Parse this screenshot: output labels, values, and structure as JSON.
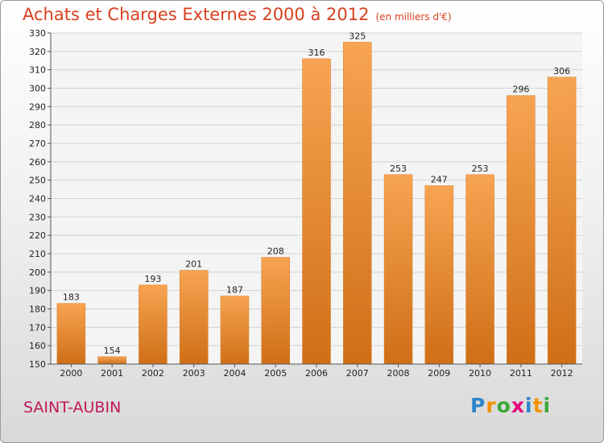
{
  "header": {
    "title": "Achats et Charges Externes 2000 à 2012",
    "subtitle": "(en milliers d'€)"
  },
  "footer": {
    "place": "SAINT-AUBIN",
    "logo_letters": [
      "P",
      "r",
      "o",
      "x",
      "i",
      "t",
      "i"
    ],
    "logo_colors": [
      "#2e86c9",
      "#f39200",
      "#3aa935",
      "#e6007e",
      "#2e86c9",
      "#f39200",
      "#3aa935"
    ]
  },
  "chart_data": {
    "type": "bar",
    "title": "Achats et Charges Externes 2000 à 2012",
    "subtitle": "(en milliers d'€)",
    "xlabel": "",
    "ylabel": "",
    "categories": [
      "2000",
      "2001",
      "2002",
      "2003",
      "2004",
      "2005",
      "2006",
      "2007",
      "2008",
      "2009",
      "2010",
      "2011",
      "2012"
    ],
    "values": [
      183,
      154,
      193,
      201,
      187,
      208,
      316,
      325,
      253,
      247,
      253,
      296,
      306
    ],
    "ylim": [
      150,
      330
    ],
    "yticks": [
      150,
      160,
      170,
      180,
      190,
      200,
      210,
      220,
      230,
      240,
      250,
      260,
      270,
      280,
      290,
      300,
      310,
      320,
      330
    ],
    "grid": true,
    "bar_color": "#f0922f",
    "bar_color_dark": "#c96a14"
  }
}
